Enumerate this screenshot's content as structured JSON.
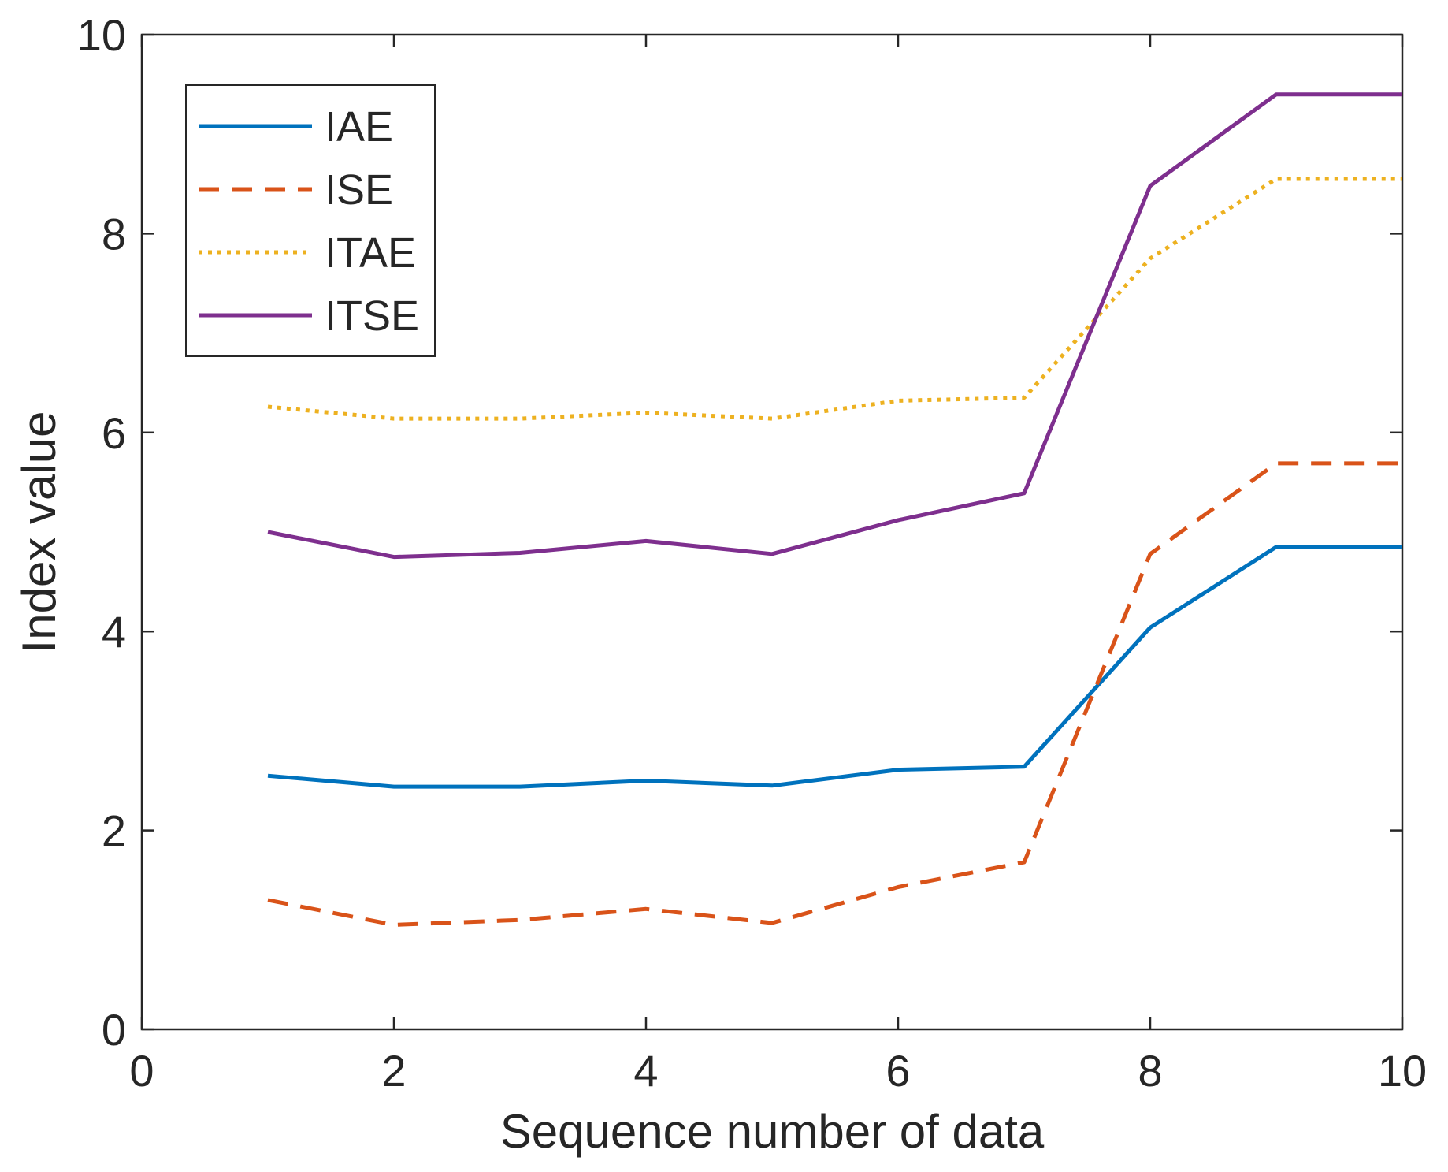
{
  "chart_data": {
    "type": "line",
    "title": "",
    "xlabel": "Sequence number of data",
    "ylabel": "Index value",
    "xlim": [
      0,
      10
    ],
    "ylim": [
      0,
      10
    ],
    "xticks": [
      0,
      2,
      4,
      6,
      8,
      10
    ],
    "yticks": [
      0,
      2,
      4,
      6,
      8,
      10
    ],
    "xtick_labels": [
      "0",
      "2",
      "4",
      "6",
      "8",
      "10"
    ],
    "ytick_labels": [
      "0",
      "2",
      "4",
      "6",
      "8",
      "10"
    ],
    "grid": false,
    "legend_position": "top-left",
    "x": [
      1,
      2,
      3,
      4,
      5,
      6,
      7,
      8,
      9,
      10
    ],
    "series": [
      {
        "name": "IAE",
        "color": "#0072BD",
        "style": "solid",
        "values": [
          2.55,
          2.44,
          2.44,
          2.5,
          2.45,
          2.61,
          2.64,
          4.04,
          4.85,
          4.85
        ]
      },
      {
        "name": "ISE",
        "color": "#D95319",
        "style": "dashed",
        "values": [
          1.3,
          1.05,
          1.1,
          1.21,
          1.07,
          1.43,
          1.68,
          4.78,
          5.69,
          5.69
        ]
      },
      {
        "name": "ITAE",
        "color": "#EDB120",
        "style": "dotted",
        "values": [
          6.26,
          6.14,
          6.14,
          6.2,
          6.14,
          6.32,
          6.35,
          7.75,
          8.55,
          8.55
        ]
      },
      {
        "name": "ITSE",
        "color": "#7E2F8E",
        "style": "solid",
        "values": [
          5.0,
          4.75,
          4.79,
          4.91,
          4.78,
          5.12,
          5.39,
          8.48,
          9.4,
          9.4
        ]
      }
    ]
  }
}
